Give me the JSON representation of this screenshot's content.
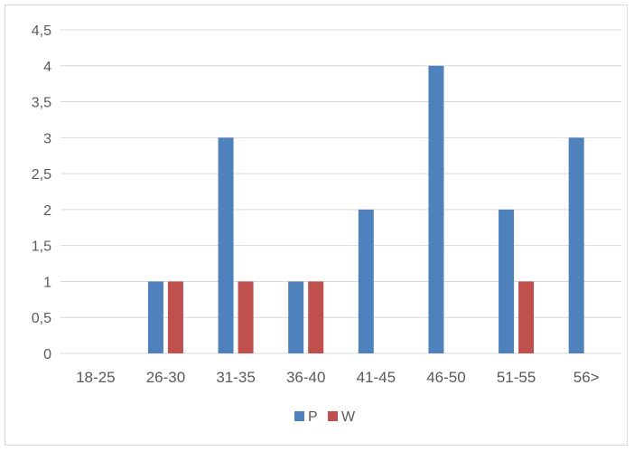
{
  "chart_data": {
    "type": "bar",
    "title": "",
    "xlabel": "",
    "ylabel": "",
    "categories": [
      "18-25",
      "26-30",
      "31-35",
      "36-40",
      "41-45",
      "46-50",
      "51-55",
      "56>"
    ],
    "series": [
      {
        "name": "P",
        "color": "#4f81bd",
        "values": [
          0,
          1,
          3,
          1,
          2,
          4,
          2,
          3
        ]
      },
      {
        "name": "W",
        "color": "#c0504d",
        "values": [
          0,
          1,
          1,
          1,
          0,
          0,
          1,
          0
        ]
      }
    ],
    "ylim": [
      0,
      4.5
    ],
    "yticks": [
      "0",
      "0,5",
      "1",
      "1,5",
      "2",
      "2,5",
      "3",
      "3,5",
      "4",
      "4,5"
    ],
    "grid": true,
    "legend_position": "bottom"
  }
}
